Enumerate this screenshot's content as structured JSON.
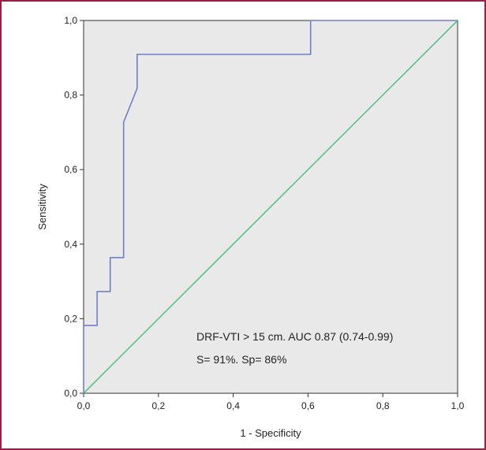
{
  "chart_data": {
    "type": "line",
    "xlabel": "1 - Specificity",
    "ylabel": "Sensitivity",
    "xlim": [
      0.0,
      1.0
    ],
    "ylim": [
      0.0,
      1.0
    ],
    "x_ticks": [
      "0,0",
      "0,2",
      "0,4",
      "0,6",
      "0,8",
      "1,0"
    ],
    "y_ticks": [
      "0,0",
      "0,2",
      "0,4",
      "0,6",
      "0,8",
      "1,0"
    ],
    "grid": false,
    "plot_background": "#e9e9e9",
    "series": [
      {
        "color": "#6f7fc8",
        "points": [
          [
            0.0,
            0.0
          ],
          [
            0.0,
            0.182
          ],
          [
            0.036,
            0.182
          ],
          [
            0.036,
            0.273
          ],
          [
            0.071,
            0.273
          ],
          [
            0.071,
            0.364
          ],
          [
            0.107,
            0.364
          ],
          [
            0.107,
            0.727
          ],
          [
            0.143,
            0.818
          ],
          [
            0.143,
            0.909
          ],
          [
            0.607,
            0.909
          ],
          [
            0.607,
            1.0
          ],
          [
            1.0,
            1.0
          ]
        ]
      },
      {
        "color": "#5cc08a",
        "points": [
          [
            0.0,
            0.0
          ],
          [
            1.0,
            1.0
          ]
        ]
      }
    ],
    "annotations": [
      "DRF-VTI > 15 cm. AUC 0.87 (0.74-0.99)",
      "S= 91%. Sp= 86%"
    ]
  }
}
